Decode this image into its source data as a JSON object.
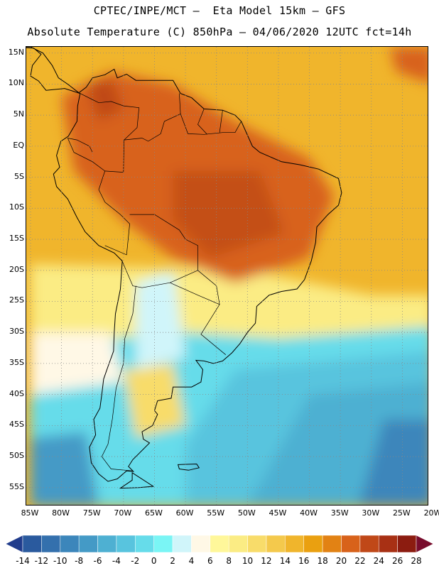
{
  "header": {
    "line1": "CPTEC/INPE/MCT –  Eta Model 15km – GFS",
    "line2": "Absolute Temperature (C) 850hPa – 04/06/2020 12UTC fct=14h"
  },
  "map": {
    "region": "South America",
    "variable": "Absolute Temperature (C) 850hPa",
    "lon_range": [
      -85,
      -20
    ],
    "lat_range": [
      -58,
      16
    ],
    "grid": "dotted",
    "lat_labels": [
      "15N",
      "10N",
      "5N",
      "EQ",
      "5S",
      "10S",
      "15S",
      "20S",
      "25S",
      "30S",
      "35S",
      "40S",
      "45S",
      "50S",
      "55S"
    ],
    "lat_values": [
      15,
      10,
      5,
      0,
      -5,
      -10,
      -15,
      -20,
      -25,
      -30,
      -35,
      -40,
      -45,
      -50,
      -55
    ],
    "lon_labels": [
      "85W",
      "80W",
      "75W",
      "70W",
      "65W",
      "60W",
      "55W",
      "50W",
      "45W",
      "40W",
      "35W",
      "30W",
      "25W",
      "20W"
    ],
    "lon_values": [
      -85,
      -80,
      -75,
      -70,
      -65,
      -60,
      -55,
      -50,
      -45,
      -40,
      -35,
      -30,
      -25,
      -20
    ]
  },
  "colorbar": {
    "labels": [
      "-14",
      "-12",
      "-10",
      "-8",
      "-6",
      "-4",
      "-2",
      "0",
      "2",
      "4",
      "6",
      "8",
      "10",
      "12",
      "14",
      "16",
      "18",
      "20",
      "22",
      "24",
      "26",
      "28"
    ],
    "colors": [
      "#203c8c",
      "#2a5a9e",
      "#3470ad",
      "#3c86bb",
      "#449ac6",
      "#4eb0d2",
      "#58c4de",
      "#66dcea",
      "#7af5f5",
      "#d0f5fa",
      "#fff8e6",
      "#fff79a",
      "#fbec84",
      "#f8dc6a",
      "#f4c94c",
      "#f0b52c",
      "#eaa010",
      "#e28214",
      "#d8621a",
      "#c04818",
      "#a83014",
      "#8c1c10",
      "#780c2c"
    ]
  },
  "fields": {
    "ocean_north": "#f0b52c",
    "atlantic_south": "#66dcea",
    "deep_cold": "#3c86bb",
    "warm_core": "#d8621a",
    "hot_core": "#c04818",
    "mild": "#fbec84",
    "cool_land": "#d0f5fa"
  }
}
